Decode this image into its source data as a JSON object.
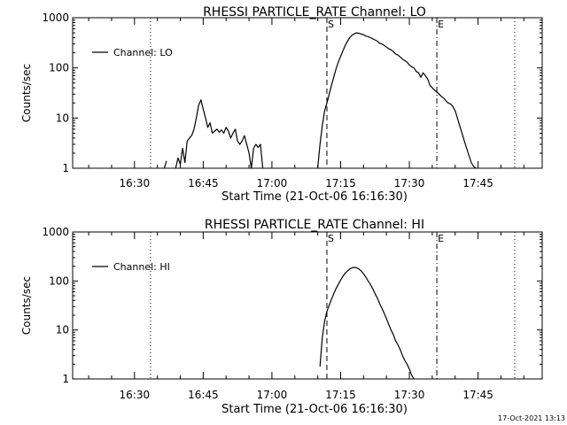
{
  "footer_timestamp": "17-Oct-2021 13:13",
  "chart_data": [
    {
      "type": "line",
      "title": "RHESSI PARTICLE_RATE Channel: LO",
      "xlabel": "Start Time (21-Oct-06 16:16:30)",
      "ylabel": "Counts/sec",
      "y_scale": "log",
      "ylim": [
        1,
        1000
      ],
      "xlim": [
        "16:16:30",
        "17:59:00"
      ],
      "x_ticks": [
        "16:30",
        "16:45",
        "17:00",
        "17:15",
        "17:30",
        "17:45"
      ],
      "y_ticks": [
        "1",
        "10",
        "100",
        "1000"
      ],
      "legend": {
        "placement": "top-left",
        "entries": [
          "Channel: LO"
        ]
      },
      "markers": [
        {
          "time": "16:33:30",
          "style": "dotted",
          "label": ""
        },
        {
          "time": "17:12:00",
          "style": "dashed",
          "label": "S"
        },
        {
          "time": "17:36:00",
          "style": "dashdot",
          "label": "E"
        },
        {
          "time": "17:53:00",
          "style": "dotted",
          "label": ""
        }
      ],
      "series": [
        {
          "name": "Channel: LO",
          "segments": [
            {
              "x": [
                "16:36:30",
                "16:37:00"
              ],
              "y": [
                1.0,
                1.4
              ]
            },
            {
              "x": [
                "16:39:00",
                "16:39:30",
                "16:40:00",
                "16:40:30",
                "16:41:00",
                "16:41:30",
                "16:42:00",
                "16:42:30",
                "16:43:00",
                "16:43:30",
                "16:44:00",
                "16:44:30",
                "16:45:00",
                "16:45:30",
                "16:46:00",
                "16:46:30",
                "16:47:00",
                "16:47:30",
                "16:48:00",
                "16:48:30",
                "16:49:00",
                "16:49:30",
                "16:50:00",
                "16:50:30",
                "16:51:00",
                "16:51:30",
                "16:52:00",
                "16:52:30",
                "16:53:00",
                "16:53:30",
                "16:54:00"
              ],
              "y": [
                1.0,
                1.6,
                1.2,
                2.5,
                1.3,
                3.5,
                4.0,
                4.5,
                6.0,
                10,
                18,
                23,
                15,
                10,
                6.5,
                8.0,
                5.0,
                5.5,
                6.0,
                5.2,
                5.8,
                5.0,
                6.5,
                5.5,
                4.0,
                5.0,
                6.0,
                3.5,
                3.0,
                3.5,
                4.5
              ]
            },
            {
              "x": [
                "16:54:00",
                "16:54:30",
                "16:55:00",
                "16:55:30",
                "16:56:00",
                "16:56:30",
                "16:57:00",
                "16:57:30",
                "16:58:00"
              ],
              "y": [
                4.5,
                3.0,
                2.0,
                1.0,
                2.5,
                3.0,
                2.6,
                3.0,
                1.0
              ]
            },
            {
              "x": [
                "17:10:00",
                "17:10:30",
                "17:11:00",
                "17:11:30",
                "17:12:00",
                "17:12:30",
                "17:13:00",
                "17:13:30",
                "17:14:00",
                "17:14:30",
                "17:15:00",
                "17:15:30",
                "17:16:00",
                "17:16:30",
                "17:17:00",
                "17:17:30",
                "17:18:00",
                "17:18:30",
                "17:19:00",
                "17:19:30",
                "17:20:00",
                "17:20:30",
                "17:21:00",
                "17:21:30",
                "17:22:00",
                "17:22:30",
                "17:23:00",
                "17:23:30",
                "17:24:00",
                "17:24:30",
                "17:25:00",
                "17:25:30",
                "17:26:00",
                "17:26:30",
                "17:27:00",
                "17:27:30",
                "17:28:00",
                "17:28:30",
                "17:29:00",
                "17:29:30",
                "17:30:00",
                "17:30:30",
                "17:31:00",
                "17:31:30",
                "17:32:00",
                "17:32:30",
                "17:33:00",
                "17:33:30",
                "17:34:00",
                "17:34:30",
                "17:35:00",
                "17:35:30",
                "17:36:00",
                "17:36:30",
                "17:37:00",
                "17:37:30",
                "17:38:00",
                "17:38:30",
                "17:39:00",
                "17:39:30",
                "17:40:00",
                "17:40:30",
                "17:41:00",
                "17:41:30",
                "17:42:00",
                "17:42:30",
                "17:43:00",
                "17:43:30",
                "17:44:00",
                "17:44:30"
              ],
              "y": [
                1.0,
                3.0,
                7.0,
                14,
                20,
                30,
                45,
                65,
                95,
                130,
                170,
                220,
                280,
                340,
                400,
                450,
                480,
                500,
                490,
                470,
                460,
                430,
                420,
                400,
                380,
                360,
                340,
                310,
                300,
                280,
                260,
                240,
                230,
                210,
                190,
                180,
                165,
                150,
                140,
                130,
                115,
                105,
                100,
                85,
                80,
                65,
                80,
                70,
                60,
                45,
                40,
                36,
                33,
                30,
                27,
                25,
                22,
                20,
                19,
                17,
                14,
                10,
                7,
                5,
                3.5,
                2.5,
                1.8,
                1.3,
                1.1,
                1.0
              ]
            }
          ]
        }
      ]
    },
    {
      "type": "line",
      "title": "RHESSI PARTICLE_RATE Channel: HI",
      "xlabel": "Start Time (21-Oct-06 16:16:30)",
      "ylabel": "Counts/sec",
      "y_scale": "log",
      "ylim": [
        1,
        1000
      ],
      "xlim": [
        "16:16:30",
        "17:59:00"
      ],
      "x_ticks": [
        "16:30",
        "16:45",
        "17:00",
        "17:15",
        "17:30",
        "17:45"
      ],
      "y_ticks": [
        "1",
        "10",
        "100",
        "1000"
      ],
      "legend": {
        "placement": "top-left",
        "entries": [
          "Channel: HI"
        ]
      },
      "markers": [
        {
          "time": "16:33:30",
          "style": "dotted",
          "label": ""
        },
        {
          "time": "17:12:00",
          "style": "dashed",
          "label": "S"
        },
        {
          "time": "17:36:00",
          "style": "dashdot",
          "label": "E"
        },
        {
          "time": "17:53:00",
          "style": "dotted",
          "label": ""
        }
      ],
      "series": [
        {
          "name": "Channel: HI",
          "segments": [
            {
              "x": [
                "17:10:30",
                "17:11:00",
                "17:11:30",
                "17:12:00",
                "17:12:30",
                "17:13:00",
                "17:13:30",
                "17:14:00",
                "17:14:30",
                "17:15:00",
                "17:15:30",
                "17:16:00",
                "17:16:30",
                "17:17:00",
                "17:17:30",
                "17:18:00",
                "17:18:30",
                "17:19:00",
                "17:19:30",
                "17:20:00",
                "17:20:30",
                "17:21:00",
                "17:21:30",
                "17:22:00",
                "17:22:30",
                "17:23:00",
                "17:23:30",
                "17:24:00",
                "17:24:30",
                "17:25:00",
                "17:25:30",
                "17:26:00",
                "17:26:30",
                "17:27:00",
                "17:27:30",
                "17:28:00",
                "17:28:30",
                "17:29:00",
                "17:29:30",
                "17:30:00",
                "17:30:30",
                "17:31:00"
              ],
              "y": [
                1.8,
                7.0,
                15,
                24,
                32,
                42,
                55,
                70,
                85,
                105,
                125,
                145,
                160,
                175,
                185,
                190,
                185,
                175,
                160,
                140,
                120,
                100,
                85,
                70,
                55,
                45,
                35,
                28,
                22,
                17,
                13,
                10,
                8,
                6,
                5,
                4,
                3,
                2.4,
                2.0,
                1.6,
                1.2,
                1.0
              ]
            }
          ]
        }
      ]
    }
  ]
}
